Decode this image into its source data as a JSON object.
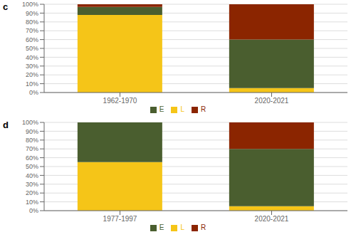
{
  "chart_data": [
    {
      "type": "bar",
      "title": "c",
      "categories": [
        "1962-1970",
        "2020-2021"
      ],
      "series": [
        {
          "name": "L",
          "color": "#F5C518",
          "values": [
            88,
            5
          ]
        },
        {
          "name": "E",
          "color": "#4A5E2F",
          "values": [
            9,
            55
          ]
        },
        {
          "name": "R",
          "color": "#8B2500",
          "values": [
            3,
            40
          ]
        }
      ],
      "stacked": true,
      "ylim": [
        0,
        100
      ],
      "yticks": [
        {
          "value": 0,
          "label": "0%"
        },
        {
          "value": 10,
          "label": "10%"
        },
        {
          "value": 20,
          "label": "20%"
        },
        {
          "value": 30,
          "label": "30%"
        },
        {
          "value": 40,
          "label": "40%"
        },
        {
          "value": 50,
          "label": "50%"
        },
        {
          "value": 60,
          "label": "60%"
        },
        {
          "value": 70,
          "label": "70%"
        },
        {
          "value": 80,
          "label": "80%"
        },
        {
          "value": 90,
          "label": "90%"
        },
        {
          "value": 100,
          "label": "100%"
        }
      ],
      "grid": true,
      "legend": "bottom"
    },
    {
      "type": "bar",
      "title": "d",
      "categories": [
        "1977-1997",
        "2020-2021"
      ],
      "series": [
        {
          "name": "L",
          "color": "#F5C518",
          "values": [
            55,
            5
          ]
        },
        {
          "name": "E",
          "color": "#4A5E2F",
          "values": [
            45,
            65
          ]
        },
        {
          "name": "R",
          "color": "#8B2500",
          "values": [
            0,
            30
          ]
        }
      ],
      "stacked": true,
      "ylim": [
        0,
        100
      ],
      "yticks": [
        {
          "value": 0,
          "label": "0%"
        },
        {
          "value": 10,
          "label": "10%"
        },
        {
          "value": 20,
          "label": "20%"
        },
        {
          "value": 30,
          "label": "30%"
        },
        {
          "value": 40,
          "label": "40%"
        },
        {
          "value": 50,
          "label": "50%"
        },
        {
          "value": 60,
          "label": "60%"
        },
        {
          "value": 70,
          "label": "70%"
        },
        {
          "value": 80,
          "label": "80%"
        },
        {
          "value": 90,
          "label": "90%"
        },
        {
          "value": 100,
          "label": "100%"
        }
      ],
      "grid": true,
      "legend": "bottom"
    }
  ]
}
